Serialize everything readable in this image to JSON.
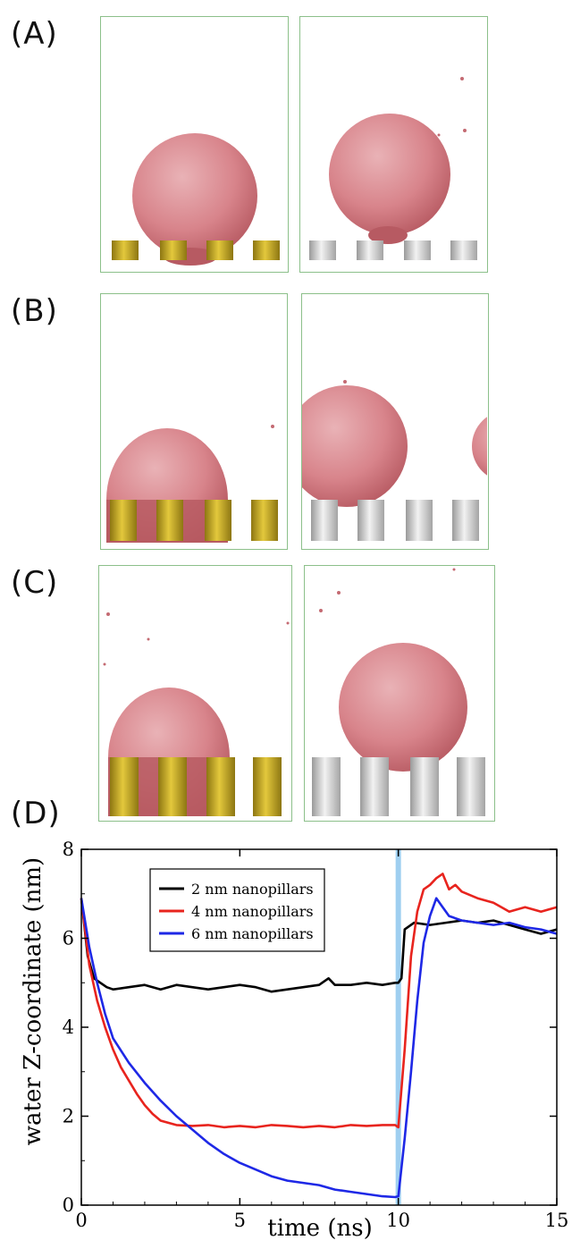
{
  "panels": {
    "a": {
      "label": "(A)"
    },
    "b": {
      "label": "(B)"
    },
    "c": {
      "label": "(C)"
    },
    "d": {
      "label": "(D)"
    }
  },
  "colors": {
    "frame": "#8cc08a",
    "water": "#d9888e",
    "water_dark": "#b9565e",
    "pillar_gold": "#c8ad2a",
    "pillar_silver": "#dcdcdc",
    "highlight": "#9fcff0"
  },
  "chart_data": {
    "type": "line",
    "xlabel": "time (ns)",
    "ylabel": "water Z-coordinate (nm)",
    "xlim": [
      0,
      15
    ],
    "ylim": [
      0,
      8
    ],
    "xticks": [
      0,
      5,
      10,
      15
    ],
    "yticks": [
      0,
      2,
      4,
      6,
      8
    ],
    "highlight_x": 10,
    "legend_position": "top-left",
    "series": [
      {
        "name": "2 nm nanopillars",
        "color": "#000000",
        "x": [
          0,
          0.2,
          0.4,
          0.6,
          0.8,
          1.0,
          1.5,
          2.0,
          2.5,
          3.0,
          3.5,
          4.0,
          4.5,
          5.0,
          5.5,
          6.0,
          6.5,
          7.0,
          7.5,
          7.8,
          8.0,
          8.5,
          9.0,
          9.5,
          9.9,
          10.0,
          10.1,
          10.2,
          10.5,
          11.0,
          11.5,
          12.0,
          12.5,
          13.0,
          13.5,
          14.0,
          14.5,
          15.0
        ],
        "values": [
          6.9,
          5.6,
          5.1,
          5.0,
          4.9,
          4.85,
          4.9,
          4.95,
          4.85,
          4.95,
          4.9,
          4.85,
          4.9,
          4.95,
          4.9,
          4.8,
          4.85,
          4.9,
          4.95,
          5.1,
          4.95,
          4.95,
          5.0,
          4.95,
          5.0,
          5.0,
          5.1,
          6.2,
          6.35,
          6.3,
          6.35,
          6.4,
          6.35,
          6.4,
          6.3,
          6.2,
          6.1,
          6.2
        ]
      },
      {
        "name": "4 nm nanopillars",
        "color": "#e8241e",
        "x": [
          0,
          0.25,
          0.5,
          0.75,
          1.0,
          1.25,
          1.5,
          1.75,
          2.0,
          2.25,
          2.5,
          3.0,
          3.5,
          4.0,
          4.5,
          5.0,
          5.5,
          6.0,
          6.5,
          7.0,
          7.5,
          8.0,
          8.5,
          9.0,
          9.5,
          9.9,
          10.0,
          10.2,
          10.4,
          10.6,
          10.8,
          11.0,
          11.2,
          11.4,
          11.6,
          11.8,
          12.0,
          12.5,
          13.0,
          13.5,
          14.0,
          14.5,
          15.0
        ],
        "values": [
          6.9,
          5.4,
          4.6,
          4.0,
          3.5,
          3.1,
          2.8,
          2.5,
          2.25,
          2.05,
          1.9,
          1.8,
          1.78,
          1.8,
          1.75,
          1.78,
          1.75,
          1.8,
          1.78,
          1.75,
          1.78,
          1.75,
          1.8,
          1.78,
          1.8,
          1.8,
          1.75,
          3.5,
          5.6,
          6.6,
          7.1,
          7.2,
          7.35,
          7.45,
          7.1,
          7.2,
          7.05,
          6.9,
          6.8,
          6.6,
          6.7,
          6.6,
          6.7
        ]
      },
      {
        "name": "6 nm nanopillars",
        "color": "#1e28e6",
        "x": [
          0,
          0.25,
          0.5,
          0.75,
          1.0,
          1.5,
          2.0,
          2.5,
          3.0,
          3.5,
          4.0,
          4.5,
          5.0,
          5.5,
          6.0,
          6.5,
          7.0,
          7.5,
          8.0,
          8.5,
          9.0,
          9.5,
          9.9,
          10.0,
          10.2,
          10.4,
          10.6,
          10.8,
          11.0,
          11.2,
          11.4,
          11.6,
          12.0,
          12.5,
          13.0,
          13.5,
          14.0,
          14.5,
          15.0
        ],
        "values": [
          6.9,
          5.8,
          5.0,
          4.3,
          3.75,
          3.2,
          2.75,
          2.35,
          2.0,
          1.7,
          1.4,
          1.15,
          0.95,
          0.8,
          0.65,
          0.55,
          0.5,
          0.45,
          0.35,
          0.3,
          0.25,
          0.2,
          0.18,
          0.2,
          1.5,
          3.0,
          4.6,
          5.9,
          6.5,
          6.9,
          6.7,
          6.5,
          6.4,
          6.35,
          6.3,
          6.35,
          6.25,
          6.2,
          6.1
        ]
      }
    ]
  }
}
